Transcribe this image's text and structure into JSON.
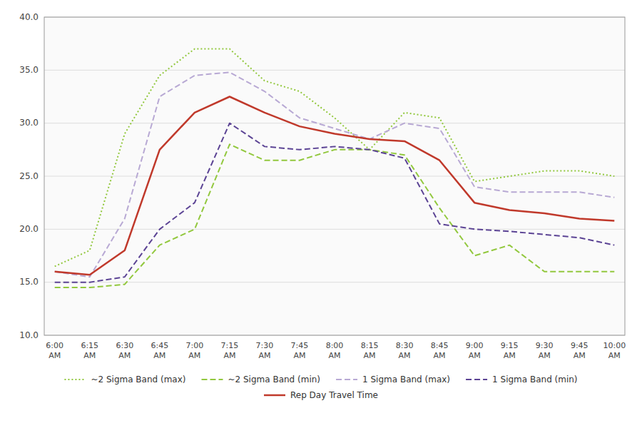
{
  "chart_data": {
    "type": "line",
    "categories": [
      "6:00\nAM",
      "6:15\nAM",
      "6:30\nAM",
      "6:45\nAM",
      "7:00\nAM",
      "7:15\nAM",
      "7:30\nAM",
      "7:45\nAM",
      "8:00\nAM",
      "8:15\nAM",
      "8:30\nAM",
      "8:45\nAM",
      "9:00\nAM",
      "9:15\nAM",
      "9:30\nAM",
      "9:45\nAM",
      "10:00\nAM"
    ],
    "series": [
      {
        "name": "~2 Sigma Band (max)",
        "color": "#92c83e",
        "line_style": "dotted",
        "values": [
          16.5,
          18.0,
          29.0,
          34.5,
          37.0,
          37.0,
          34.0,
          33.0,
          30.5,
          27.5,
          31.0,
          30.5,
          24.5,
          25.0,
          25.5,
          25.5,
          25.0
        ]
      },
      {
        "name": "~2 Sigma Band (min)",
        "color": "#92c83e",
        "line_style": "dashed",
        "values": [
          14.5,
          14.5,
          14.8,
          18.5,
          20.0,
          28.0,
          26.5,
          26.5,
          27.5,
          27.5,
          27.0,
          22.0,
          17.5,
          18.5,
          16.0,
          16.0,
          16.0
        ]
      },
      {
        "name": "1 Sigma Band (max)",
        "color": "#b8a9d4",
        "line_style": "dashed",
        "values": [
          16.0,
          15.5,
          21.0,
          32.5,
          34.5,
          34.8,
          33.0,
          30.5,
          29.5,
          28.5,
          30.0,
          29.5,
          24.0,
          23.5,
          23.5,
          23.5,
          23.0
        ]
      },
      {
        "name": "1 Sigma Band (min)",
        "color": "#5b4394",
        "line_style": "dashed",
        "values": [
          15.0,
          15.0,
          15.5,
          20.0,
          22.5,
          30.0,
          27.8,
          27.5,
          27.8,
          27.5,
          26.7,
          20.5,
          20.0,
          19.8,
          19.5,
          19.2,
          18.5
        ]
      },
      {
        "name": "Rep Day Travel Time",
        "color": "#c0392b",
        "line_style": "solid",
        "values": [
          16.0,
          15.7,
          18.0,
          27.5,
          31.0,
          32.5,
          31.0,
          29.7,
          29.0,
          28.5,
          28.3,
          26.5,
          22.5,
          21.8,
          21.5,
          21.0,
          20.8
        ]
      }
    ],
    "ylim": [
      10.0,
      40.0
    ],
    "yticks": [
      {
        "value": 10.0,
        "label": "10.0"
      },
      {
        "value": 15.0,
        "label": "15.0"
      },
      {
        "value": 20.0,
        "label": "20.0"
      },
      {
        "value": 25.0,
        "label": "25.0"
      },
      {
        "value": 30.0,
        "label": "30.0"
      },
      {
        "value": 35.0,
        "label": "35.0"
      },
      {
        "value": 40.0,
        "label": "40.0"
      }
    ],
    "grid": true,
    "legend": "bottom"
  }
}
